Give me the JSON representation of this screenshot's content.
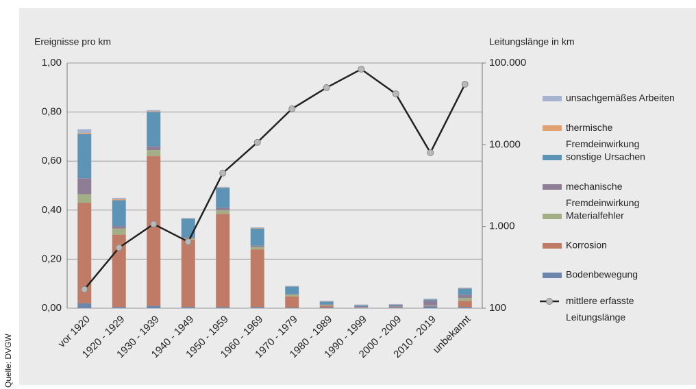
{
  "chart_data": {
    "type": "bar-line",
    "y_label": "Ereignisse pro km",
    "y2_label": "Leitungslänge in km",
    "source": "Quelle: DVGW",
    "categories": [
      "vor 1920",
      "1920 - 1929",
      "1930 - 1939",
      "1940 - 1949",
      "1950 - 1959",
      "1960 - 1969",
      "1970 - 1979",
      "1980 - 1989",
      "1990 - 1999",
      "2000 - 2009",
      "2010 - 2019",
      "unbekannt"
    ],
    "ylim": [
      0,
      1
    ],
    "yticks": [
      {
        "value": 0,
        "label": "0,00"
      },
      {
        "value": 0.2,
        "label": "0,20"
      },
      {
        "value": 0.4,
        "label": "0,40"
      },
      {
        "value": 0.6,
        "label": "0,60"
      },
      {
        "value": 0.8,
        "label": "0,80"
      },
      {
        "value": 1,
        "label": "1,00"
      }
    ],
    "y2lim": [
      100,
      100000
    ],
    "y2scale": "log",
    "y2ticks": [
      100,
      {
        "value": 1000,
        "label": "1.000"
      },
      {
        "value": 10000,
        "label": "10.000"
      },
      {
        "value": 100000,
        "label": "100.000"
      }
    ],
    "grid": true,
    "legend": "right",
    "stacked": true,
    "series": [
      {
        "name": "Bodenbewegung",
        "color": "#6c86ab",
        "values": [
          0.02,
          0.005,
          0.01,
          0.005,
          0.005,
          0.005,
          0.003,
          0.003,
          0.002,
          0.003,
          0.008,
          0.005
        ]
      },
      {
        "name": "Korrosion",
        "color": "#c07b66",
        "values": [
          0.41,
          0.295,
          0.61,
          0.275,
          0.38,
          0.235,
          0.045,
          0.007,
          0.002,
          0.002,
          0.002,
          0.025
        ]
      },
      {
        "name": "Materialfehler",
        "color": "#a3ae86",
        "values": [
          0.035,
          0.025,
          0.025,
          0.005,
          0.015,
          0.01,
          0.007,
          0.003,
          0.001,
          0.001,
          0.002,
          0.012
        ]
      },
      {
        "name": "mechanische Fremdeinwirkung",
        "color": "#8e7d96",
        "values": [
          0.065,
          0.01,
          0.015,
          0.005,
          0.01,
          0.005,
          0.003,
          0.002,
          0.002,
          0.004,
          0.018,
          0.013
        ]
      },
      {
        "name": "sonstige Ursachen",
        "color": "#5d93b5",
        "values": [
          0.18,
          0.105,
          0.14,
          0.075,
          0.08,
          0.07,
          0.03,
          0.012,
          0.005,
          0.004,
          0.005,
          0.025
        ]
      },
      {
        "name": "thermische Fremdeinwirkung",
        "color": "#e0a070",
        "values": [
          0.005,
          0.005,
          0.003,
          0.001,
          0.002,
          0.002,
          0.001,
          0.001,
          0.001,
          0.001,
          0.001,
          0.001
        ]
      },
      {
        "name": "unsachgemäßes Arbeiten",
        "color": "#a6b4cf",
        "values": [
          0.015,
          0.005,
          0.005,
          0.002,
          0.003,
          0.003,
          0.002,
          0.002,
          0.002,
          0.002,
          0.003,
          0.003
        ]
      },
      {
        "name": "mittlere erfasste Leitungslänge",
        "type": "line",
        "axis": "y2",
        "color": "#222222",
        "marker_color": "#b8b8b8",
        "values": [
          170,
          550,
          1070,
          650,
          4500,
          10700,
          27500,
          50000,
          84000,
          42000,
          8000,
          55000
        ]
      }
    ]
  }
}
